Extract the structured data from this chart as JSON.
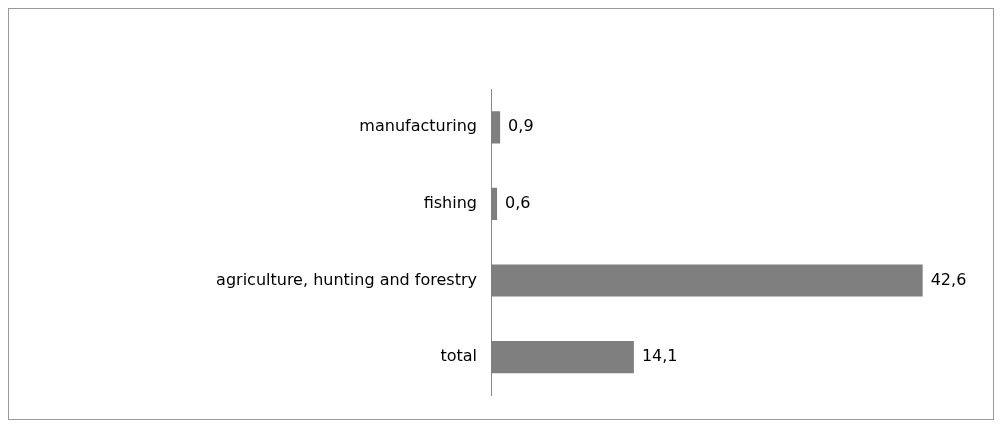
{
  "chart_data": {
    "type": "bar",
    "orientation": "horizontal",
    "categories": [
      "manufacturing",
      "fishing",
      "agriculture, hunting and forestry",
      "total"
    ],
    "values": [
      0.9,
      0.6,
      42.6,
      14.1
    ],
    "color": "#7f7f7f",
    "value_labels": [
      "0,9",
      "0,6",
      "42,6",
      "14,1"
    ]
  }
}
